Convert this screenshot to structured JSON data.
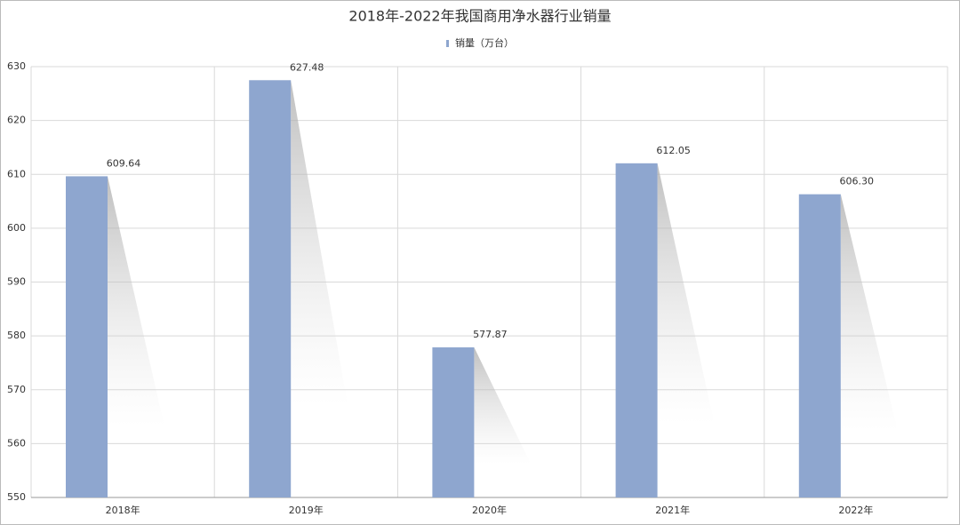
{
  "chart_data": {
    "type": "bar",
    "title": "2018年-2022年我国商用净水器行业销量",
    "categories": [
      "2018年",
      "2019年",
      "2020年",
      "2021年",
      "2022年"
    ],
    "series": [
      {
        "name": "销量（万台）",
        "color": "#8ea6cf",
        "values": [
          609.64,
          627.48,
          577.87,
          612.05,
          606.3
        ],
        "value_labels": [
          "609.64",
          "627.48",
          "577.87",
          "612.05",
          "606.30"
        ]
      }
    ],
    "ylim": [
      550,
      630
    ],
    "yticks": [
      550,
      560,
      570,
      580,
      590,
      600,
      610,
      620,
      630
    ],
    "grid": true
  }
}
